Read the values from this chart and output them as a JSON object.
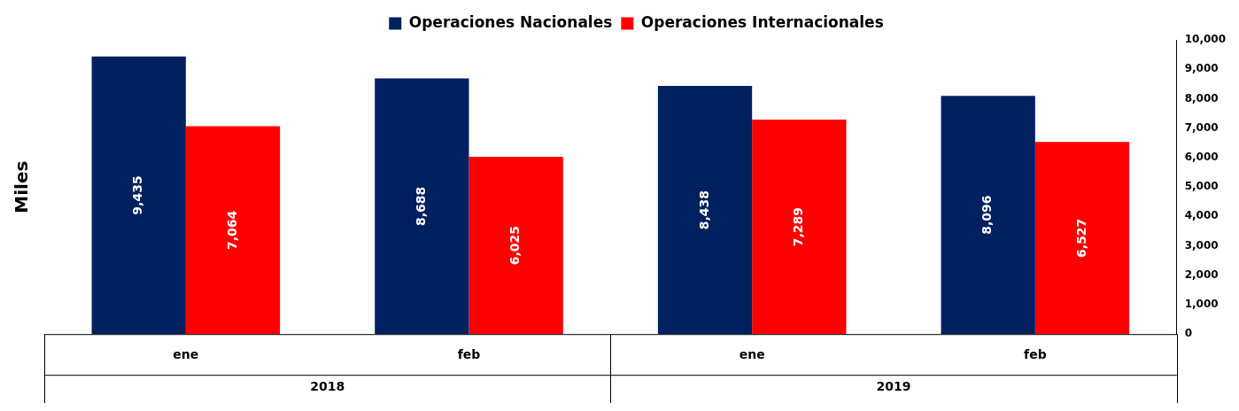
{
  "chart_data": {
    "type": "bar",
    "ylabel": "Miles",
    "categories": [
      "ene",
      "feb",
      "ene",
      "feb"
    ],
    "series": [
      {
        "name": "Operaciones Nacionales",
        "color": "#002060",
        "values": [
          9435,
          8688,
          8438,
          8096
        ],
        "value_labels": [
          "9,435",
          "8,688",
          "8,438",
          "8,096"
        ]
      },
      {
        "name": "Operaciones Internacionales",
        "color": "#ff0000",
        "values": [
          7064,
          6025,
          7289,
          6527
        ],
        "value_labels": [
          "7,064",
          "6,025",
          "7,289",
          "6,527"
        ]
      }
    ],
    "ylim": [
      0,
      10000
    ],
    "yticks": [
      0,
      {
        "value": 1000,
        "label": "1,000"
      },
      {
        "value": 2000,
        "label": "2,000"
      },
      {
        "value": 3000,
        "label": "3,000"
      },
      {
        "value": 4000,
        "label": "4,000"
      },
      {
        "value": 5000,
        "label": "5,000"
      },
      {
        "value": 6000,
        "label": "6,000"
      },
      {
        "value": 7000,
        "label": "7,000"
      },
      {
        "value": 8000,
        "label": "8,000"
      },
      {
        "value": 9000,
        "label": "9,000"
      },
      {
        "value": 10000,
        "label": "10,000"
      }
    ],
    "legend": "top",
    "grid": false,
    "annotations": [
      "2018",
      "2019"
    ]
  }
}
